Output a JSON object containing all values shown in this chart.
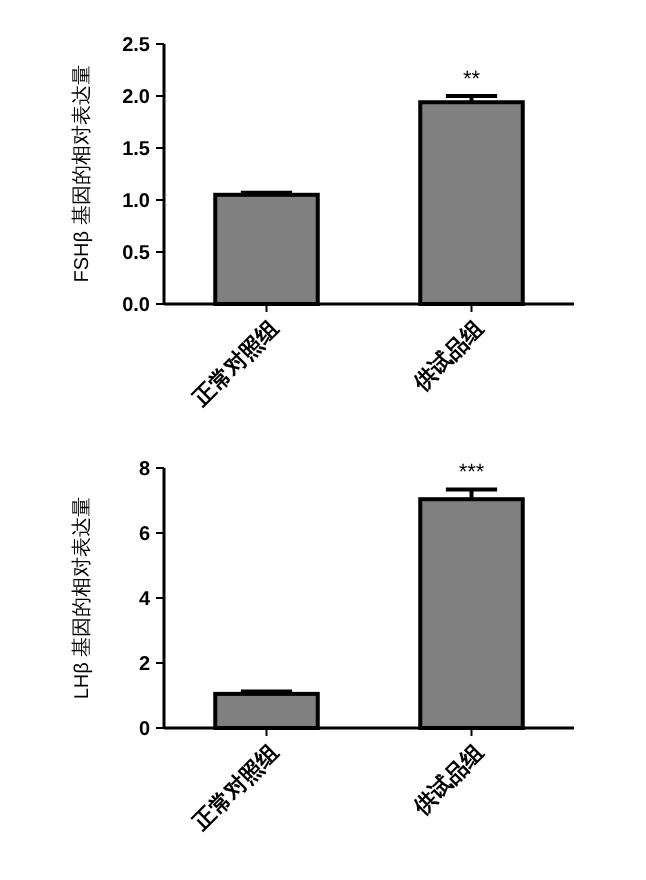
{
  "chart_data": [
    {
      "type": "bar",
      "ylabel": "FSHβ 基因的相对表达量",
      "categories": [
        "正常对照组",
        "供试品组"
      ],
      "values": [
        1.05,
        1.94
      ],
      "errors": [
        0.02,
        0.06
      ],
      "color": "#808080",
      "ylim": [
        0,
        2.5
      ],
      "yticks": [
        {
          "value": 0,
          "label": "0.0"
        },
        {
          "value": 0.5,
          "label": "0.5"
        },
        {
          "value": 1,
          "label": "1.0"
        },
        {
          "value": 1.5,
          "label": "1.5"
        },
        {
          "value": 2,
          "label": "2.0"
        },
        {
          "value": 2.5,
          "label": "2.5"
        }
      ],
      "annotations": [
        {
          "text": "**",
          "x": "供试品组",
          "y": 2.0
        }
      ]
    },
    {
      "type": "bar",
      "ylabel": "LHβ 基因的相对表达量",
      "categories": [
        "正常对照组",
        "供试品组"
      ],
      "values": [
        1.05,
        7.04
      ],
      "errors": [
        0.07,
        0.3
      ],
      "color": "#808080",
      "ylim": [
        0,
        8
      ],
      "yticks": [
        0,
        2,
        4,
        6,
        8
      ],
      "annotations": [
        {
          "text": "***",
          "x": "供试品组",
          "y": 7.34
        }
      ]
    }
  ]
}
